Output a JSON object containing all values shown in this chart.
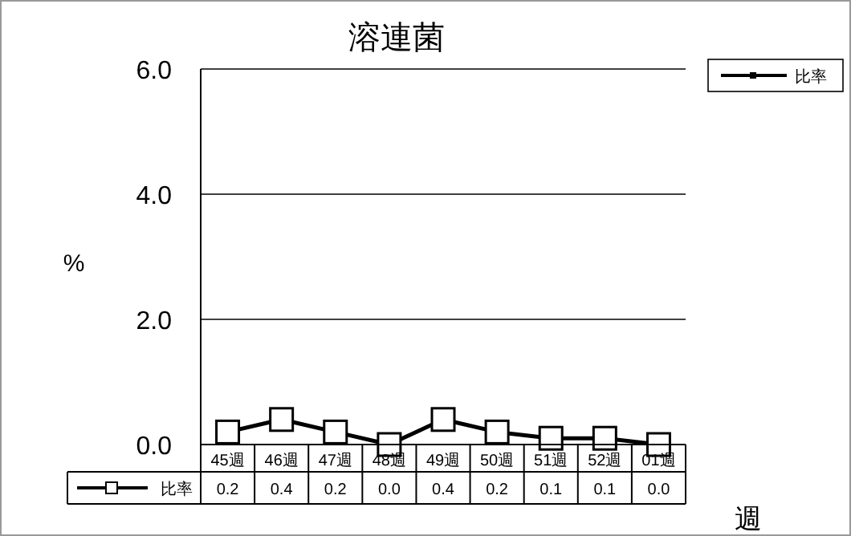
{
  "chart_data": {
    "type": "line",
    "title": "溶連菌",
    "ylabel": "%",
    "xlabel": "週",
    "categories": [
      "45週",
      "46週",
      "47週",
      "48週",
      "49週",
      "50週",
      "51週",
      "52週",
      "01週"
    ],
    "series": [
      {
        "name": "比率",
        "color": "#000000",
        "values": [
          0.2,
          0.4,
          0.2,
          0.0,
          0.4,
          0.2,
          0.1,
          0.1,
          0.0
        ],
        "value_labels": [
          "0.2",
          "0.4",
          "0.2",
          "0.0",
          "0.4",
          "0.2",
          "0.1",
          "0.1",
          "0.0"
        ]
      }
    ],
    "ylim": [
      0,
      6
    ],
    "yticks": [
      {
        "value": 0,
        "label": "0.0"
      },
      {
        "value": 2,
        "label": "2.0"
      },
      {
        "value": 4,
        "label": "4.0"
      },
      {
        "value": 6,
        "label": "6.0"
      }
    ],
    "grid": "y",
    "marker": "square",
    "line_style": "solid",
    "legend": "bottom left"
  }
}
